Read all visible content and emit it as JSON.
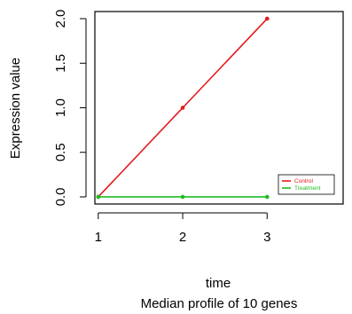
{
  "chart_data": {
    "type": "line",
    "title": "Median profile of 10 genes",
    "xlabel": "time",
    "ylabel": "Expression value",
    "x": [
      1,
      2,
      3
    ],
    "x_ticks": [
      1,
      2,
      3
    ],
    "x_tick_labels": [
      "1",
      "2",
      "3"
    ],
    "xlim": [
      0.96,
      3.9
    ],
    "y_ticks": [
      0.0,
      0.5,
      1.0,
      1.5,
      2.0
    ],
    "y_tick_labels": [
      "0.0",
      "0.5",
      "1.0",
      "1.5",
      "2.0"
    ],
    "ylim": [
      -0.08,
      2.08
    ],
    "grid": false,
    "legend_position": "bottom-right",
    "series": [
      {
        "name": "Control",
        "values": [
          0,
          1,
          2
        ],
        "color": "#e41a1c"
      },
      {
        "name": "Treatment",
        "values": [
          0,
          0,
          0
        ],
        "color": "#22bb22"
      }
    ]
  }
}
